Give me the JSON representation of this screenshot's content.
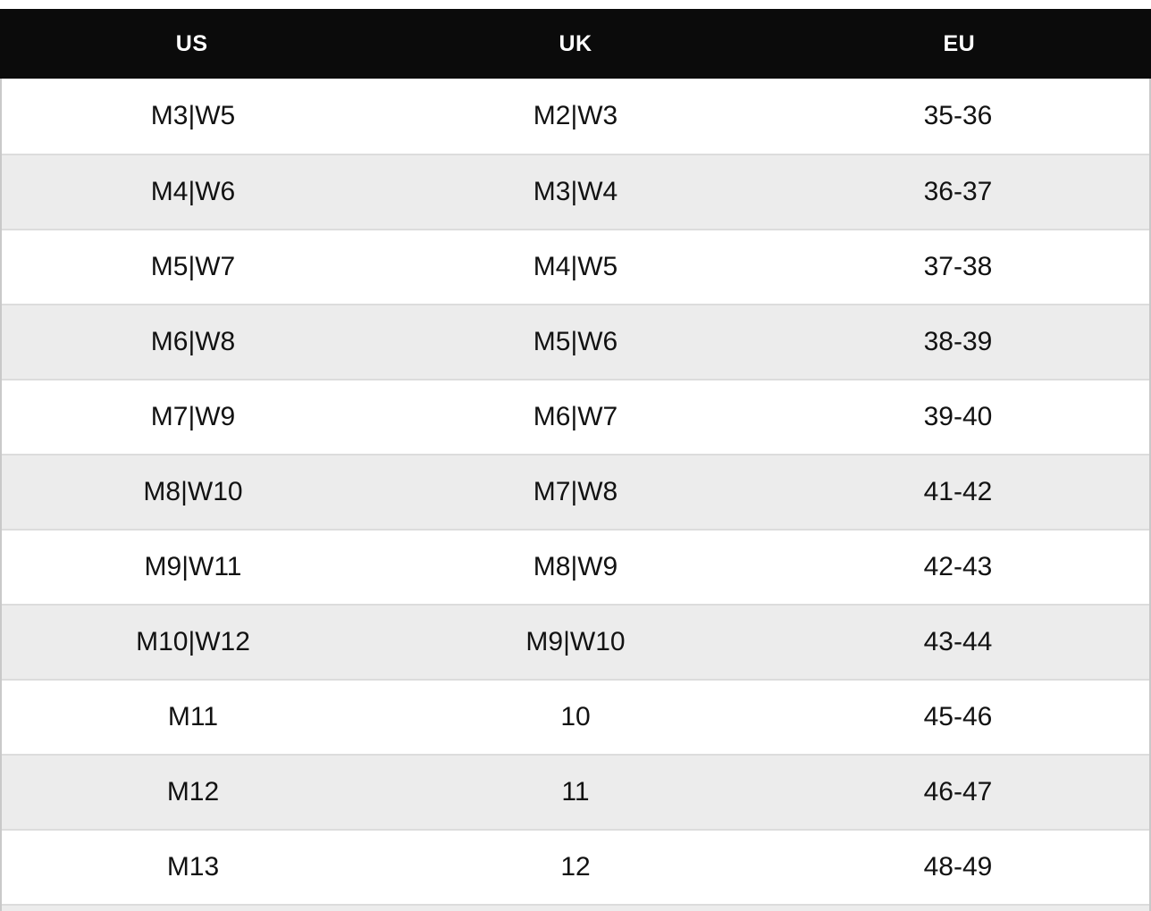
{
  "colors": {
    "header_bg": "#0b0b0b",
    "header_text": "#ffffff",
    "row_bg": "#ffffff",
    "row_alt_bg": "#ececec",
    "row_border": "#dcdcdc",
    "side_border": "#c9c9c9",
    "cell_text": "#121212",
    "page_bg": "#ffffff"
  },
  "table": {
    "columns": [
      {
        "key": "us",
        "label": "US"
      },
      {
        "key": "uk",
        "label": "UK"
      },
      {
        "key": "eu",
        "label": "EU"
      }
    ],
    "rows": [
      {
        "us": "M3|W5",
        "uk": "M2|W3",
        "eu": "35-36"
      },
      {
        "us": "M4|W6",
        "uk": "M3|W4",
        "eu": "36-37"
      },
      {
        "us": "M5|W7",
        "uk": "M4|W5",
        "eu": "37-38"
      },
      {
        "us": "M6|W8",
        "uk": "M5|W6",
        "eu": "38-39"
      },
      {
        "us": "M7|W9",
        "uk": "M6|W7",
        "eu": "39-40"
      },
      {
        "us": "M8|W10",
        "uk": "M7|W8",
        "eu": "41-42"
      },
      {
        "us": "M9|W11",
        "uk": "M8|W9",
        "eu": "42-43"
      },
      {
        "us": "M10|W12",
        "uk": "M9|W10",
        "eu": "43-44"
      },
      {
        "us": "M11",
        "uk": "10",
        "eu": "45-46"
      },
      {
        "us": "M12",
        "uk": "11",
        "eu": "46-47"
      },
      {
        "us": "M13",
        "uk": "12",
        "eu": "48-49"
      }
    ],
    "partial_next_row_visible": true
  }
}
